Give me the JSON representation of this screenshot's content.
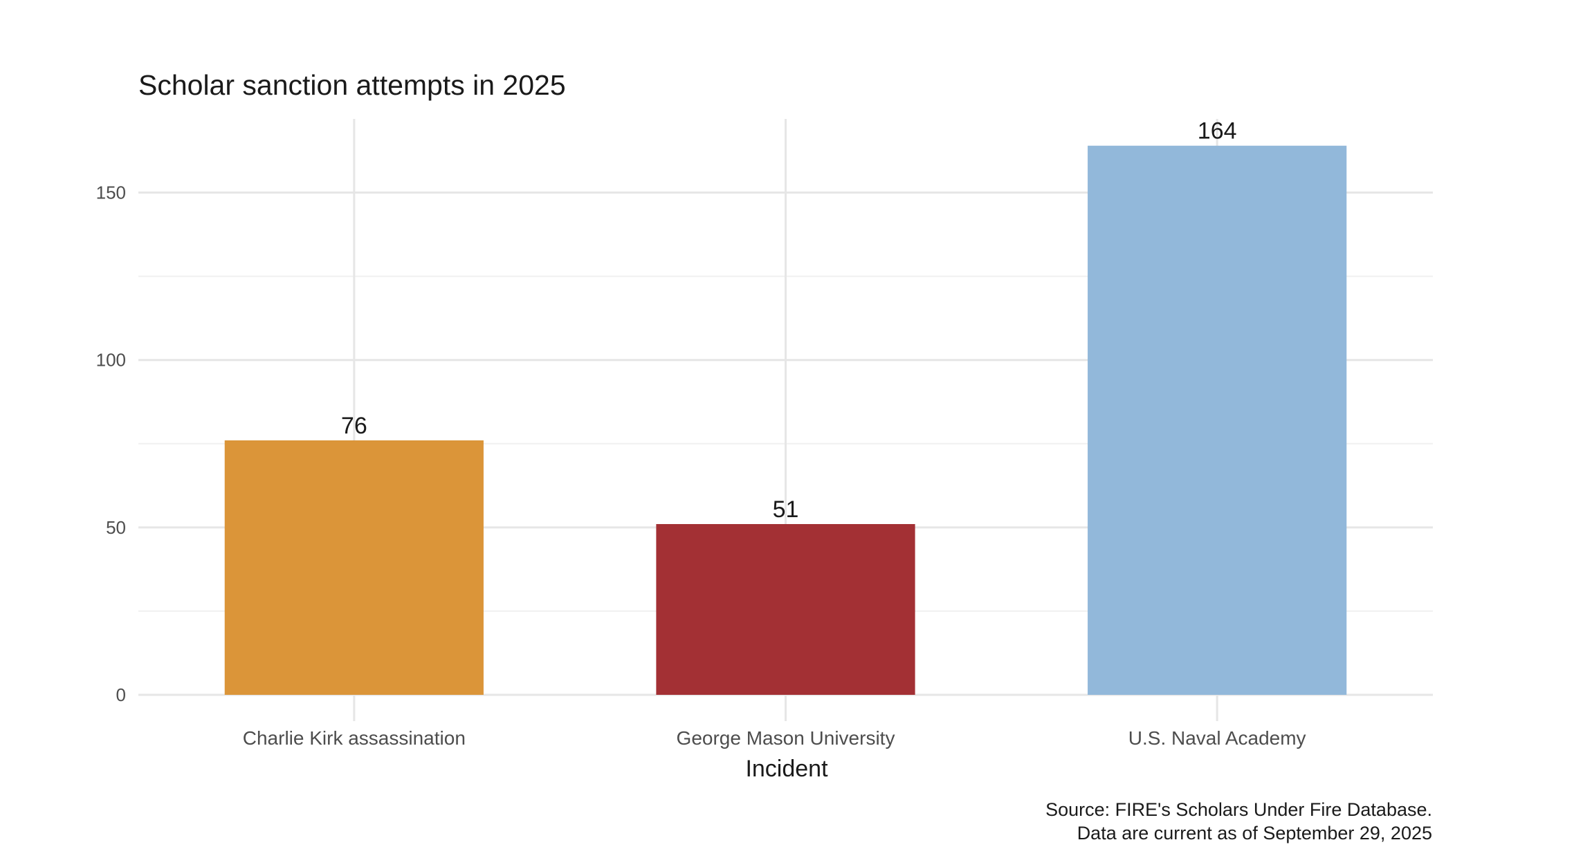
{
  "chart_data": {
    "type": "bar",
    "title": "Scholar sanction attempts in 2025",
    "xlabel": "Incident",
    "ylabel": "",
    "categories": [
      "Charlie Kirk assassination",
      "George Mason University",
      "U.S. Naval Academy"
    ],
    "values": [
      76,
      51,
      164
    ],
    "data_labels": [
      "76",
      "51",
      "164"
    ],
    "colors": [
      "#db9539",
      "#a33034",
      "#92b8da"
    ],
    "ylim": [
      0,
      172
    ],
    "yticks": [
      0,
      50,
      100,
      150
    ],
    "ytick_labels": [
      "0",
      "50",
      "100",
      "150"
    ],
    "grid": true,
    "legend": "none",
    "caption": [
      "Source: FIRE's Scholars Under Fire Database.",
      "Data are current as of September 29, 2025"
    ]
  }
}
